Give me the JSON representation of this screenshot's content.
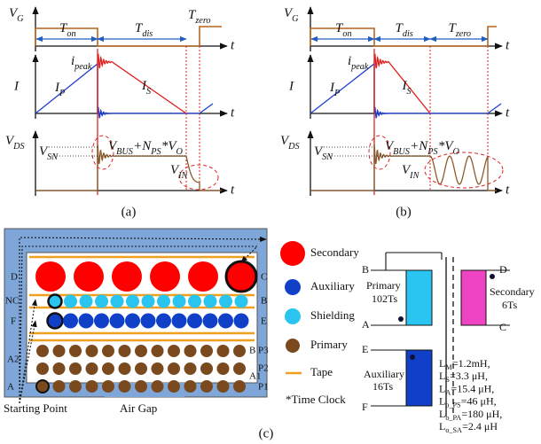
{
  "panel_a": {
    "caption": "(a)",
    "vg": [
      {
        "t": "V",
        "sub": "G"
      }
    ],
    "ton": [
      {
        "t": "T",
        "sub": "on"
      }
    ],
    "tdis": [
      {
        "t": "T",
        "sub": "dis"
      }
    ],
    "tzero": [
      {
        "t": "T",
        "sub": "zero"
      }
    ],
    "t_axes": [
      "t",
      "t",
      "t"
    ],
    "i": "I",
    "ipeak": [
      {
        "t": "i",
        "sub": "peak"
      }
    ],
    "ip": [
      {
        "t": "I",
        "sub": "P"
      }
    ],
    "is": [
      {
        "t": "I",
        "sub": "S"
      }
    ],
    "vds": [
      {
        "t": "V",
        "sub": "DS"
      }
    ],
    "vsn": [
      {
        "t": "V",
        "sub": "SN"
      }
    ],
    "vbus": [
      {
        "t": "V",
        "sub": "BUS"
      },
      {
        "t": "+N",
        "sub": "PS"
      },
      {
        "t": "*V",
        "sub": "O"
      }
    ],
    "vin": [
      {
        "t": "V",
        "sub": "IN"
      }
    ]
  },
  "panel_b": {
    "caption": "(b)",
    "vg": [
      {
        "t": "V",
        "sub": "G"
      }
    ],
    "ton": [
      {
        "t": "T",
        "sub": "on"
      }
    ],
    "tdis": [
      {
        "t": "T",
        "sub": "dis"
      }
    ],
    "tzero": [
      {
        "t": "T",
        "sub": "zero"
      }
    ],
    "t_axes": [
      "t",
      "t",
      "t"
    ],
    "i": "I",
    "ipeak": [
      {
        "t": "i",
        "sub": "peak"
      }
    ],
    "ip": [
      {
        "t": "I",
        "sub": "P"
      }
    ],
    "is": [
      {
        "t": "I",
        "sub": "S"
      }
    ],
    "vds": [
      {
        "t": "V",
        "sub": "DS"
      }
    ],
    "vsn": [
      {
        "t": "V",
        "sub": "SN"
      }
    ],
    "vbus": [
      {
        "t": "V",
        "sub": "BUS"
      },
      {
        "t": "+N",
        "sub": "PS"
      },
      {
        "t": "*V",
        "sub": "O"
      }
    ],
    "vin": [
      {
        "t": "V",
        "sub": "IN"
      }
    ]
  },
  "panel_c": {
    "caption": "(c)",
    "winding_labels": [
      "D",
      "C",
      "NC",
      "B",
      "F",
      "E",
      "B",
      "P3",
      "P2",
      "P1",
      "A2",
      "A1",
      "A"
    ],
    "starting_point": "Starting Point",
    "air_gap": "Air Gap",
    "legend": [
      "Secondary",
      "Auxiliary",
      "Shielding",
      "Primary",
      "Tape"
    ],
    "time_clock": "*Time Clock",
    "transformer": {
      "terminals": [
        "B",
        "A",
        "D",
        "C",
        "E",
        "F"
      ],
      "primary": [
        "Primary",
        "102Ts"
      ],
      "secondary": [
        "Secondary",
        "6Ts"
      ],
      "auxiliary": [
        "Auxiliary",
        "16Ts"
      ],
      "params": [
        [
          {
            "t": "L",
            "sub": "M"
          },
          {
            "t": "=1.2mH,"
          }
        ],
        [
          {
            "t": "L",
            "sub": "S"
          },
          {
            "t": "=3.3 μH,"
          }
        ],
        [
          {
            "t": "L",
            "sub": "A"
          },
          {
            "t": "=15.4 μH,"
          }
        ],
        [
          {
            "t": "L",
            "sub": "o_PS"
          },
          {
            "t": "=46 μH,"
          }
        ],
        [
          {
            "t": "L",
            "sub": "o_PA"
          },
          {
            "t": "=180 μH,"
          }
        ],
        [
          {
            "t": "L",
            "sub": "o_SA"
          },
          {
            "t": "=2.4 μH"
          }
        ]
      ]
    }
  }
}
